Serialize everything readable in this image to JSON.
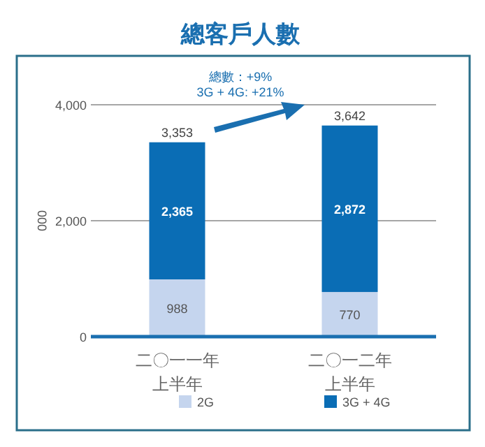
{
  "chart_data": {
    "type": "bar",
    "title": "總客戶人數",
    "ylabel": "000",
    "stacked": true,
    "categories": [
      "二〇一一年上半年",
      "二〇一二年上半年"
    ],
    "series": [
      {
        "name": "2G",
        "color": "#c5d5ee",
        "values": [
          988,
          770
        ],
        "value_labels": [
          "988",
          "770"
        ]
      },
      {
        "name": "3G + 4G",
        "color": "#0a6db5",
        "values": [
          2365,
          2872
        ],
        "value_labels": [
          "2,365",
          "2,872"
        ]
      }
    ],
    "totals": [
      "3,353",
      "3,642"
    ],
    "ylim": [
      0,
      4000
    ],
    "yticks": [
      0,
      {
        "value": 2000,
        "label": "2,000"
      },
      {
        "value": 4000,
        "label": "4,000"
      }
    ],
    "grid": "y",
    "legend": "bottom",
    "annotations": [
      "總數：+9%",
      "3G + 4G: +21%"
    ]
  }
}
